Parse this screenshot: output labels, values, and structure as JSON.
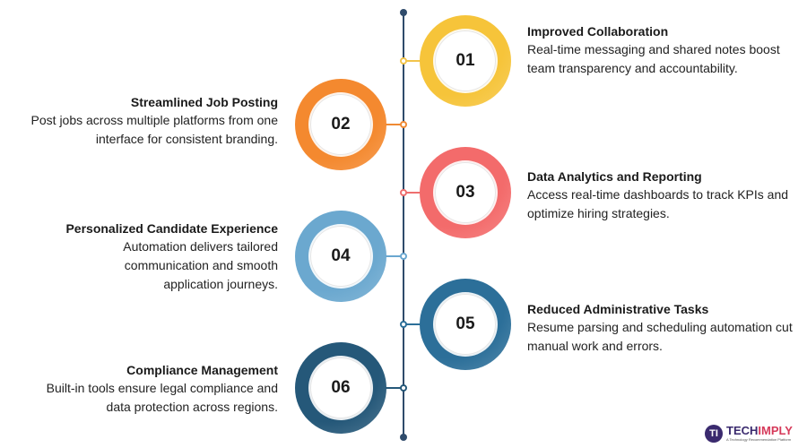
{
  "steps": [
    {
      "number": "01",
      "title": "Improved Collaboration",
      "description": "Real-time messaging and shared notes boost team transparency and accountability.",
      "color_outer": "#f6c43a",
      "color_dot": "#f2c44b"
    },
    {
      "number": "02",
      "title": "Streamlined Job Posting",
      "description": "Post jobs across multiple platforms from one interface for consistent branding.",
      "color_outer": "#f4892f",
      "color_dot": "#ef8a34"
    },
    {
      "number": "03",
      "title": "Data Analytics and Reporting",
      "description": "Access real-time dashboards to track KPIs and optimize hiring strategies.",
      "color_outer": "#f36b6b",
      "color_dot": "#ee6f6f"
    },
    {
      "number": "04",
      "title": "Personalized Candidate Experience",
      "description": "Automation delivers tailored communication and smooth application journeys.",
      "color_outer": "#6ba8cf",
      "color_dot": "#6aa7d0"
    },
    {
      "number": "05",
      "title": "Reduced Administrative Tasks",
      "description": "Resume parsing and scheduling automation cut manual work and errors.",
      "color_outer": "#2c6f99",
      "color_dot": "#2c6f99"
    },
    {
      "number": "06",
      "title": "Compliance Management",
      "description": "Built-in tools ensure legal compliance and data protection across regions.",
      "color_outer": "#255879",
      "color_dot": "#255879"
    }
  ],
  "branding": {
    "logo_mark": "TI",
    "logo_text_main": "TECH",
    "logo_text_accent": "IMPLY",
    "tagline": "A Technology Recommendation Platform",
    "brand_color": "#3a2a6e",
    "accent_color": "#d63a5a"
  },
  "spine_color": "#2f4b6b"
}
